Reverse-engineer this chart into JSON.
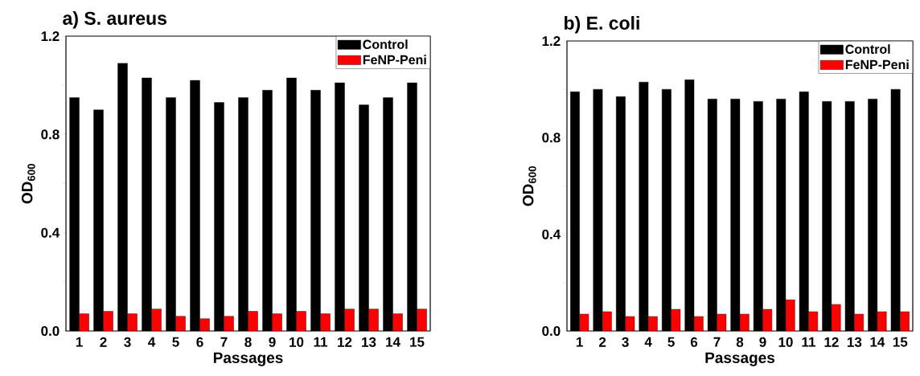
{
  "chart_data": [
    {
      "type": "bar",
      "title": "a) S. aureus",
      "xlabel": "Passages",
      "ylabel": "OD$_{600}$",
      "categories": [
        "1",
        "2",
        "3",
        "4",
        "5",
        "6",
        "7",
        "8",
        "9",
        "10",
        "11",
        "12",
        "13",
        "14",
        "15"
      ],
      "series": [
        {
          "name": "Control",
          "color": "#000000",
          "values": [
            0.95,
            0.9,
            1.09,
            1.03,
            0.95,
            1.02,
            0.93,
            0.95,
            0.98,
            1.03,
            0.98,
            1.01,
            0.92,
            0.95,
            1.01
          ]
        },
        {
          "name": "FeNP-Peni",
          "color": "#ff0000",
          "values": [
            0.07,
            0.08,
            0.07,
            0.09,
            0.06,
            0.05,
            0.06,
            0.08,
            0.07,
            0.08,
            0.07,
            0.09,
            0.09,
            0.07,
            0.09
          ]
        }
      ],
      "ylim": [
        0,
        1.2
      ],
      "yticks": [
        {
          "value": 0,
          "label": "0.0"
        },
        {
          "value": 0.2,
          "label": null
        },
        {
          "value": 0.4,
          "label": "0.4"
        },
        {
          "value": 0.6,
          "label": null
        },
        {
          "value": 0.8,
          "label": "0.8"
        },
        {
          "value": 1.0,
          "label": null
        },
        {
          "value": 1.2,
          "label": "1.2"
        }
      ],
      "legend": "top right"
    },
    {
      "type": "bar",
      "title": "b) E. coli",
      "xlabel": "Passages",
      "ylabel": "OD$_{600}$",
      "categories": [
        "1",
        "2",
        "3",
        "4",
        "5",
        "6",
        "7",
        "8",
        "9",
        "10",
        "11",
        "12",
        "13",
        "14",
        "15"
      ],
      "series": [
        {
          "name": "Control",
          "color": "#000000",
          "values": [
            0.99,
            1.0,
            0.97,
            1.03,
            1.0,
            1.04,
            0.96,
            0.96,
            0.95,
            0.96,
            0.99,
            0.95,
            0.95,
            0.96,
            1.0
          ]
        },
        {
          "name": "FeNP-Peni",
          "color": "#ff0000",
          "values": [
            0.07,
            0.08,
            0.06,
            0.06,
            0.09,
            0.06,
            0.07,
            0.07,
            0.09,
            0.13,
            0.08,
            0.11,
            0.07,
            0.08,
            0.08
          ]
        }
      ],
      "ylim": [
        0,
        1.2
      ],
      "yticks": [
        {
          "value": 0,
          "label": "0.0"
        },
        {
          "value": 0.2,
          "label": null
        },
        {
          "value": 0.4,
          "label": "0.4"
        },
        {
          "value": 0.6,
          "label": null
        },
        {
          "value": 0.8,
          "label": "0.8"
        },
        {
          "value": 1.0,
          "label": null
        },
        {
          "value": 1.2,
          "label": "1.2"
        }
      ],
      "legend": "top right"
    }
  ]
}
